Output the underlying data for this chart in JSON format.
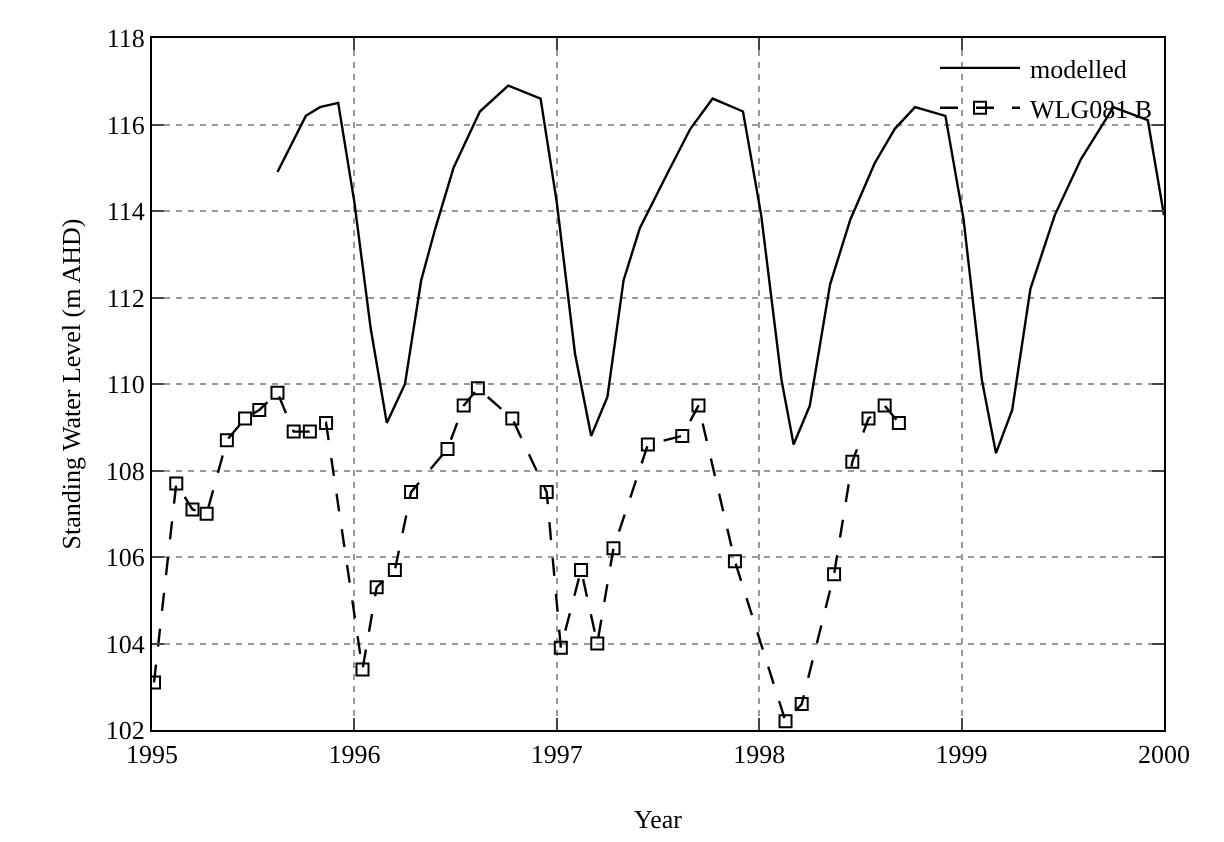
{
  "chart_data": {
    "type": "line",
    "xlabel": "Year",
    "ylabel": "Standing Water Level (m AHD)",
    "xlim": [
      1995,
      2000
    ],
    "xticks": [
      1995,
      1996,
      1997,
      1998,
      1999,
      2000
    ],
    "ylim": [
      102,
      118
    ],
    "yticks": [
      102,
      104,
      106,
      108,
      110,
      112,
      114,
      116,
      118
    ],
    "grid": true,
    "legend": "top right",
    "series": [
      {
        "name": "modelled",
        "color": "#000000",
        "marker": "none",
        "line_style": "solid",
        "x": [
          1995.62,
          1995.76,
          1995.83,
          1995.92,
          1996.0,
          1996.08,
          1996.16,
          1996.25,
          1996.33,
          1996.4,
          1996.49,
          1996.62,
          1996.76,
          1996.92,
          1997.0,
          1997.09,
          1997.17,
          1997.25,
          1997.33,
          1997.41,
          1997.55,
          1997.66,
          1997.77,
          1997.92,
          1998.01,
          1998.11,
          1998.17,
          1998.25,
          1998.35,
          1998.45,
          1998.57,
          1998.67,
          1998.77,
          1998.92,
          1999.01,
          1999.1,
          1999.17,
          1999.25,
          1999.34,
          1999.46,
          1999.59,
          1999.75,
          1999.92,
          2000.0
        ],
        "values": [
          114.9,
          116.2,
          116.4,
          116.5,
          114.2,
          111.3,
          109.1,
          110.0,
          112.4,
          113.6,
          115.0,
          116.3,
          116.9,
          116.6,
          114.2,
          110.7,
          108.8,
          109.7,
          112.4,
          113.6,
          114.9,
          115.9,
          116.6,
          116.3,
          113.9,
          110.1,
          108.6,
          109.5,
          112.3,
          113.8,
          115.1,
          115.9,
          116.4,
          116.2,
          113.8,
          110.1,
          108.4,
          109.4,
          112.2,
          113.9,
          115.2,
          116.4,
          116.1,
          113.9
        ]
      },
      {
        "name": "WLG081 B",
        "color": "#000000",
        "marker": "square",
        "line_style": "dashed",
        "x": [
          1995.01,
          1995.12,
          1995.2,
          1995.27,
          1995.37,
          1995.46,
          1995.53,
          1995.62,
          1995.7,
          1995.78,
          1995.86,
          1996.04,
          1996.11,
          1996.2,
          1996.28,
          1996.46,
          1996.54,
          1996.61,
          1996.78,
          1996.95,
          1997.02,
          1997.12,
          1997.2,
          1997.28,
          1997.45,
          1997.62,
          1997.7,
          1997.88,
          1998.13,
          1998.21,
          1998.37,
          1998.46,
          1998.54,
          1998.62,
          1998.69
        ],
        "values": [
          103.1,
          107.7,
          107.1,
          107.0,
          108.7,
          109.2,
          109.4,
          109.8,
          108.9,
          108.9,
          109.1,
          103.4,
          105.3,
          105.7,
          107.5,
          108.5,
          109.5,
          109.9,
          109.2,
          107.5,
          103.9,
          105.7,
          104.0,
          106.2,
          108.6,
          108.8,
          109.5,
          105.9,
          102.2,
          102.6,
          105.6,
          108.2,
          109.2,
          109.5,
          109.1
        ]
      }
    ]
  }
}
